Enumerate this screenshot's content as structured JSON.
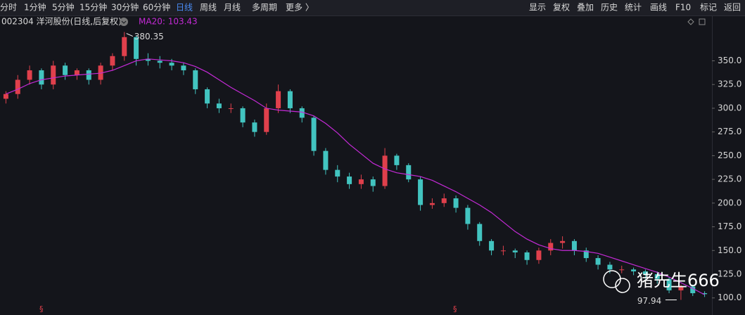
{
  "toolbar": {
    "periods": [
      "分时",
      "1分钟",
      "5分钟",
      "15分钟",
      "30分钟",
      "60分钟",
      "日线",
      "周线",
      "月线",
      "多周期",
      "更多 〉"
    ],
    "active": 6,
    "tools": [
      "显示",
      "复权",
      "叠加",
      "历史",
      "统计",
      "画线",
      "F10",
      "标记",
      "返回"
    ]
  },
  "chart_data": {
    "type": "candlestick",
    "title": "002304 洋河股份(日线,后复权)",
    "up_color": "#e0404c",
    "down_color": "#42c4c0",
    "open": [
      310,
      315,
      330,
      340,
      325,
      345,
      335,
      340,
      330,
      345,
      355,
      375,
      352,
      350,
      348,
      345,
      340,
      320,
      305,
      300,
      300,
      285,
      275,
      300,
      318,
      300,
      290,
      255,
      235,
      228,
      220,
      225,
      218,
      250,
      240,
      225,
      198,
      200,
      205,
      195,
      178,
      160,
      150,
      150,
      148,
      140,
      150,
      158,
      160,
      150,
      142,
      135,
      130,
      130,
      128,
      125,
      120,
      108,
      112,
      105
    ],
    "high": [
      318,
      335,
      345,
      342,
      350,
      348,
      342,
      342,
      348,
      358,
      380.35,
      377,
      358,
      355,
      352,
      348,
      342,
      322,
      310,
      305,
      302,
      288,
      305,
      325,
      320,
      302,
      292,
      258,
      240,
      232,
      230,
      228,
      258,
      252,
      242,
      228,
      205,
      210,
      208,
      198,
      180,
      162,
      155,
      152,
      150,
      153,
      162,
      165,
      162,
      153,
      145,
      138,
      134,
      132,
      130,
      128,
      122,
      114,
      114,
      107
    ],
    "low": [
      305,
      310,
      325,
      320,
      320,
      330,
      330,
      325,
      325,
      340,
      350,
      345,
      345,
      342,
      340,
      335,
      315,
      300,
      295,
      295,
      280,
      270,
      272,
      295,
      295,
      285,
      250,
      230,
      222,
      215,
      215,
      212,
      215,
      235,
      222,
      192,
      194,
      196,
      190,
      172,
      155,
      145,
      145,
      142,
      135,
      136,
      145,
      152,
      145,
      138,
      130,
      126,
      126,
      124,
      120,
      115,
      105,
      97.94,
      102,
      101
    ],
    "close": [
      315,
      330,
      340,
      325,
      345,
      335,
      340,
      330,
      345,
      355,
      375,
      352,
      350,
      348,
      345,
      340,
      320,
      305,
      300,
      300,
      285,
      275,
      300,
      318,
      300,
      290,
      255,
      235,
      228,
      220,
      225,
      218,
      250,
      240,
      225,
      198,
      200,
      205,
      195,
      178,
      160,
      150,
      150,
      148,
      140,
      150,
      158,
      160,
      150,
      142,
      135,
      130,
      130,
      128,
      125,
      120,
      108,
      112,
      105,
      104
    ],
    "ma": {
      "name": "MA20",
      "legend_text": "MA20: 103.43",
      "color": "#c42ad6",
      "values": [
        315,
        320,
        326,
        330,
        332,
        334,
        335,
        336,
        337,
        340,
        345,
        350,
        352,
        351,
        350,
        348,
        344,
        338,
        330,
        322,
        315,
        308,
        300,
        298,
        297,
        296,
        292,
        284,
        274,
        262,
        252,
        242,
        236,
        232,
        230,
        228,
        224,
        218,
        212,
        205,
        198,
        190,
        180,
        170,
        162,
        156,
        152,
        150,
        150,
        149,
        147,
        143,
        139,
        135,
        131,
        127,
        122,
        116,
        110,
        103.43
      ]
    },
    "ylim": [
      82,
      383
    ],
    "yticks": [
      {
        "value": 100,
        "label": "100.0"
      },
      {
        "value": 125,
        "label": "125.0"
      },
      {
        "value": 150,
        "label": "150.0"
      },
      {
        "value": 175,
        "label": "175.0"
      },
      {
        "value": 200,
        "label": "200.0"
      },
      {
        "value": 225,
        "label": "225.0"
      },
      {
        "value": 250,
        "label": "250.0"
      },
      {
        "value": 275,
        "label": "275.0"
      },
      {
        "value": 300,
        "label": "300.0"
      },
      {
        "value": 325,
        "label": "325.0"
      },
      {
        "value": 350,
        "label": "350.0"
      }
    ],
    "markers": [
      "§",
      "§"
    ],
    "watermark": "猪先生666"
  }
}
